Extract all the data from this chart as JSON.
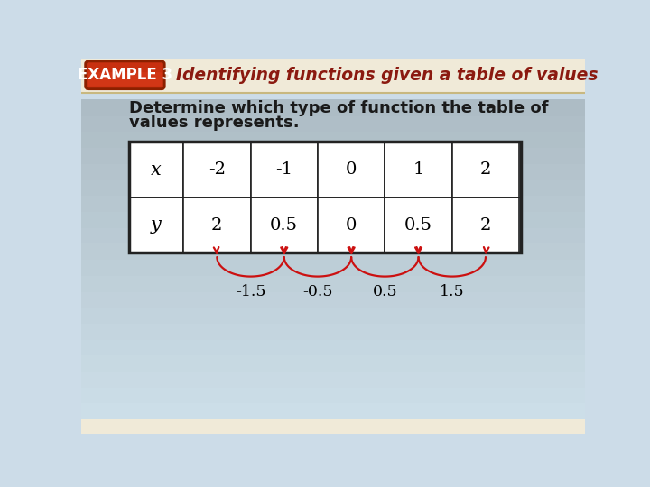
{
  "title_example": "EXAMPLE 3",
  "title_main": "Identifying functions given a table of values",
  "body_text_line1": "Determine which type of function the table of",
  "body_text_line2": "values represents.",
  "x_label": "x",
  "y_label": "y",
  "x_values": [
    "-2",
    "-1",
    "0",
    "1",
    "2"
  ],
  "y_values": [
    "2",
    "0.5",
    "0",
    "0.5",
    "2"
  ],
  "diff_labels": [
    "-1.5",
    "-0.5",
    "0.5",
    "1.5"
  ],
  "bg_stripe_color": "#f0ead8",
  "bg_main_color": "#ccdce8",
  "title_color": "#8b1a10",
  "body_text_color": "#1a1a1a",
  "table_border_color": "#222222",
  "arrow_color": "#cc1111",
  "badge_color": "#c83010",
  "badge_border_color": "#8b2000",
  "header_bg": "#f0ead8"
}
